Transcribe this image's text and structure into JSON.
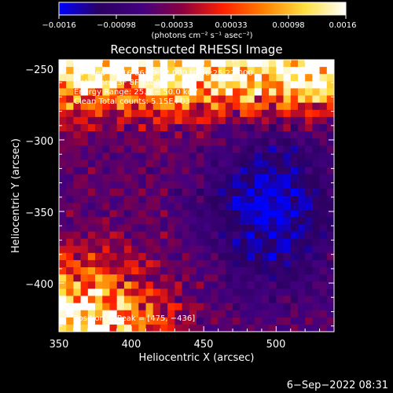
{
  "chart_data": {
    "type": "heatmap",
    "title": "Reconstructed RHESSI Image",
    "xlabel": "Heliocentric X (arcsec)",
    "ylabel": "Heliocentric Y (arcsec)",
    "xlim": [
      350,
      540
    ],
    "ylim": [
      -434,
      -244
    ],
    "x_ticks": [
      350,
      400,
      450,
      500
    ],
    "y_ticks": [
      -250,
      -300,
      -350,
      -400
    ],
    "x_tick_labels": [
      "350",
      "400",
      "450",
      "500"
    ],
    "y_tick_labels": [
      "−250",
      "−300",
      "−350",
      "−400"
    ],
    "colorbar": {
      "range": [
        -0.0016,
        0.0016
      ],
      "tick_labels": [
        "−0.0016",
        "−0.00098",
        "−0.00033",
        "0.00033",
        "0.00098",
        "0.0016"
      ],
      "unit_label": "(photons cm⁻² s⁻¹ asec⁻²)",
      "colors": [
        "#0000ff",
        "#2b0060",
        "#420080",
        "#8a0040",
        "#ff2000",
        "#ff8000",
        "#ffe040",
        "#ffffff"
      ]
    },
    "annotations": [
      "26−Sep−2016 06:19:32.000 to 06:25:22.000",
      "Detectors: 3F 8F  Att 0",
      "Energy Range: 25.0 − 50.0 keV",
      "Clean     Total counts: 5.15E+03"
    ],
    "peak_label": "Position of Peak = [475, −436]",
    "pixel_grid": [
      38,
      38
    ]
  },
  "footer": {
    "timestamp": "6−Sep−2022 08:31"
  }
}
